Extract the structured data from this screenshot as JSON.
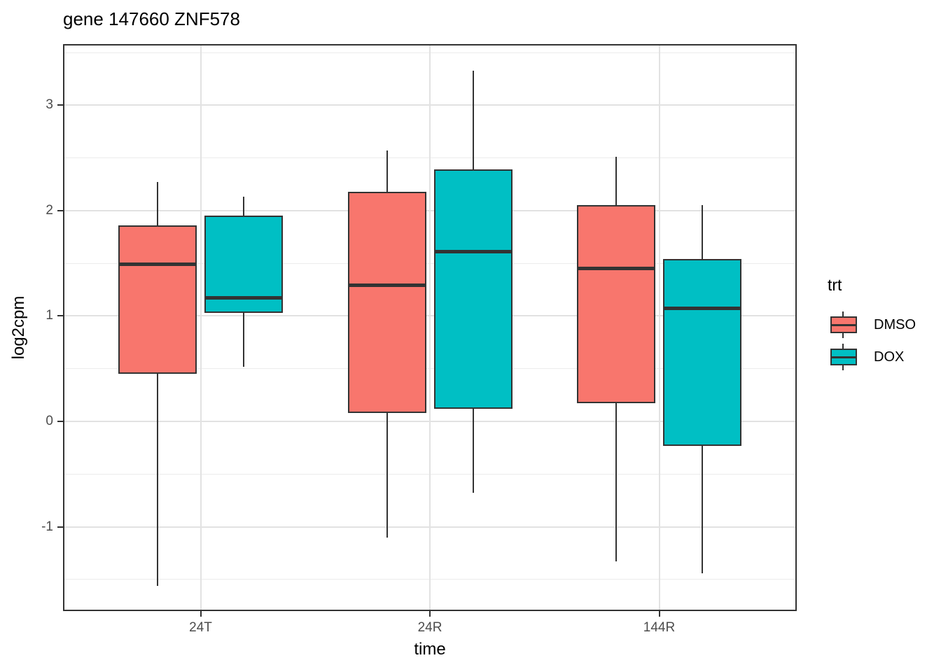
{
  "title": "gene 147660 ZNF578",
  "chart_data": {
    "type": "boxplot",
    "title": "gene 147660 ZNF578",
    "xlabel": "time",
    "ylabel": "log2cpm",
    "categories": [
      "24T",
      "24R",
      "144R"
    ],
    "y_ticks": [
      3,
      2,
      1,
      0,
      -1
    ],
    "y_minor_ticks": [
      3.5,
      2.5,
      1.5,
      0.5,
      -0.5,
      -1.5
    ],
    "ylim": [
      -1.8,
      3.58
    ],
    "grid": true,
    "legend": {
      "title": "trt",
      "position": "right",
      "entries": [
        {
          "label": "DMSO",
          "color": "#F8766D"
        },
        {
          "label": "DOX",
          "color": "#00BFC4"
        }
      ]
    },
    "series": [
      {
        "name": "DMSO",
        "color": "#F8766D",
        "boxes": [
          {
            "category": "24T",
            "whisker_low": -1.56,
            "q1": 0.45,
            "median": 1.49,
            "q3": 1.86,
            "whisker_high": 2.27
          },
          {
            "category": "24R",
            "whisker_low": -1.1,
            "q1": 0.08,
            "median": 1.29,
            "q3": 2.18,
            "whisker_high": 2.57
          },
          {
            "category": "144R",
            "whisker_low": -1.33,
            "q1": 0.17,
            "median": 1.45,
            "q3": 2.05,
            "whisker_high": 2.51
          }
        ]
      },
      {
        "name": "DOX",
        "color": "#00BFC4",
        "boxes": [
          {
            "category": "24T",
            "whisker_low": 0.52,
            "q1": 1.03,
            "median": 1.17,
            "q3": 1.95,
            "whisker_high": 2.13
          },
          {
            "category": "24R",
            "whisker_low": -0.68,
            "q1": 0.12,
            "median": 1.61,
            "q3": 2.39,
            "whisker_high": 3.33
          },
          {
            "category": "144R",
            "whisker_low": -1.44,
            "q1": -0.23,
            "median": 1.07,
            "q3": 1.54,
            "whisker_high": 2.05
          }
        ]
      }
    ],
    "style": {
      "accent_colors": [
        "#F8766D",
        "#00BFC4"
      ],
      "stroke_color": "#333333",
      "grid_major_color": "#e2e2e2",
      "grid_minor_color": "#ececec",
      "tick_label_color": "#4d4d4d"
    }
  }
}
